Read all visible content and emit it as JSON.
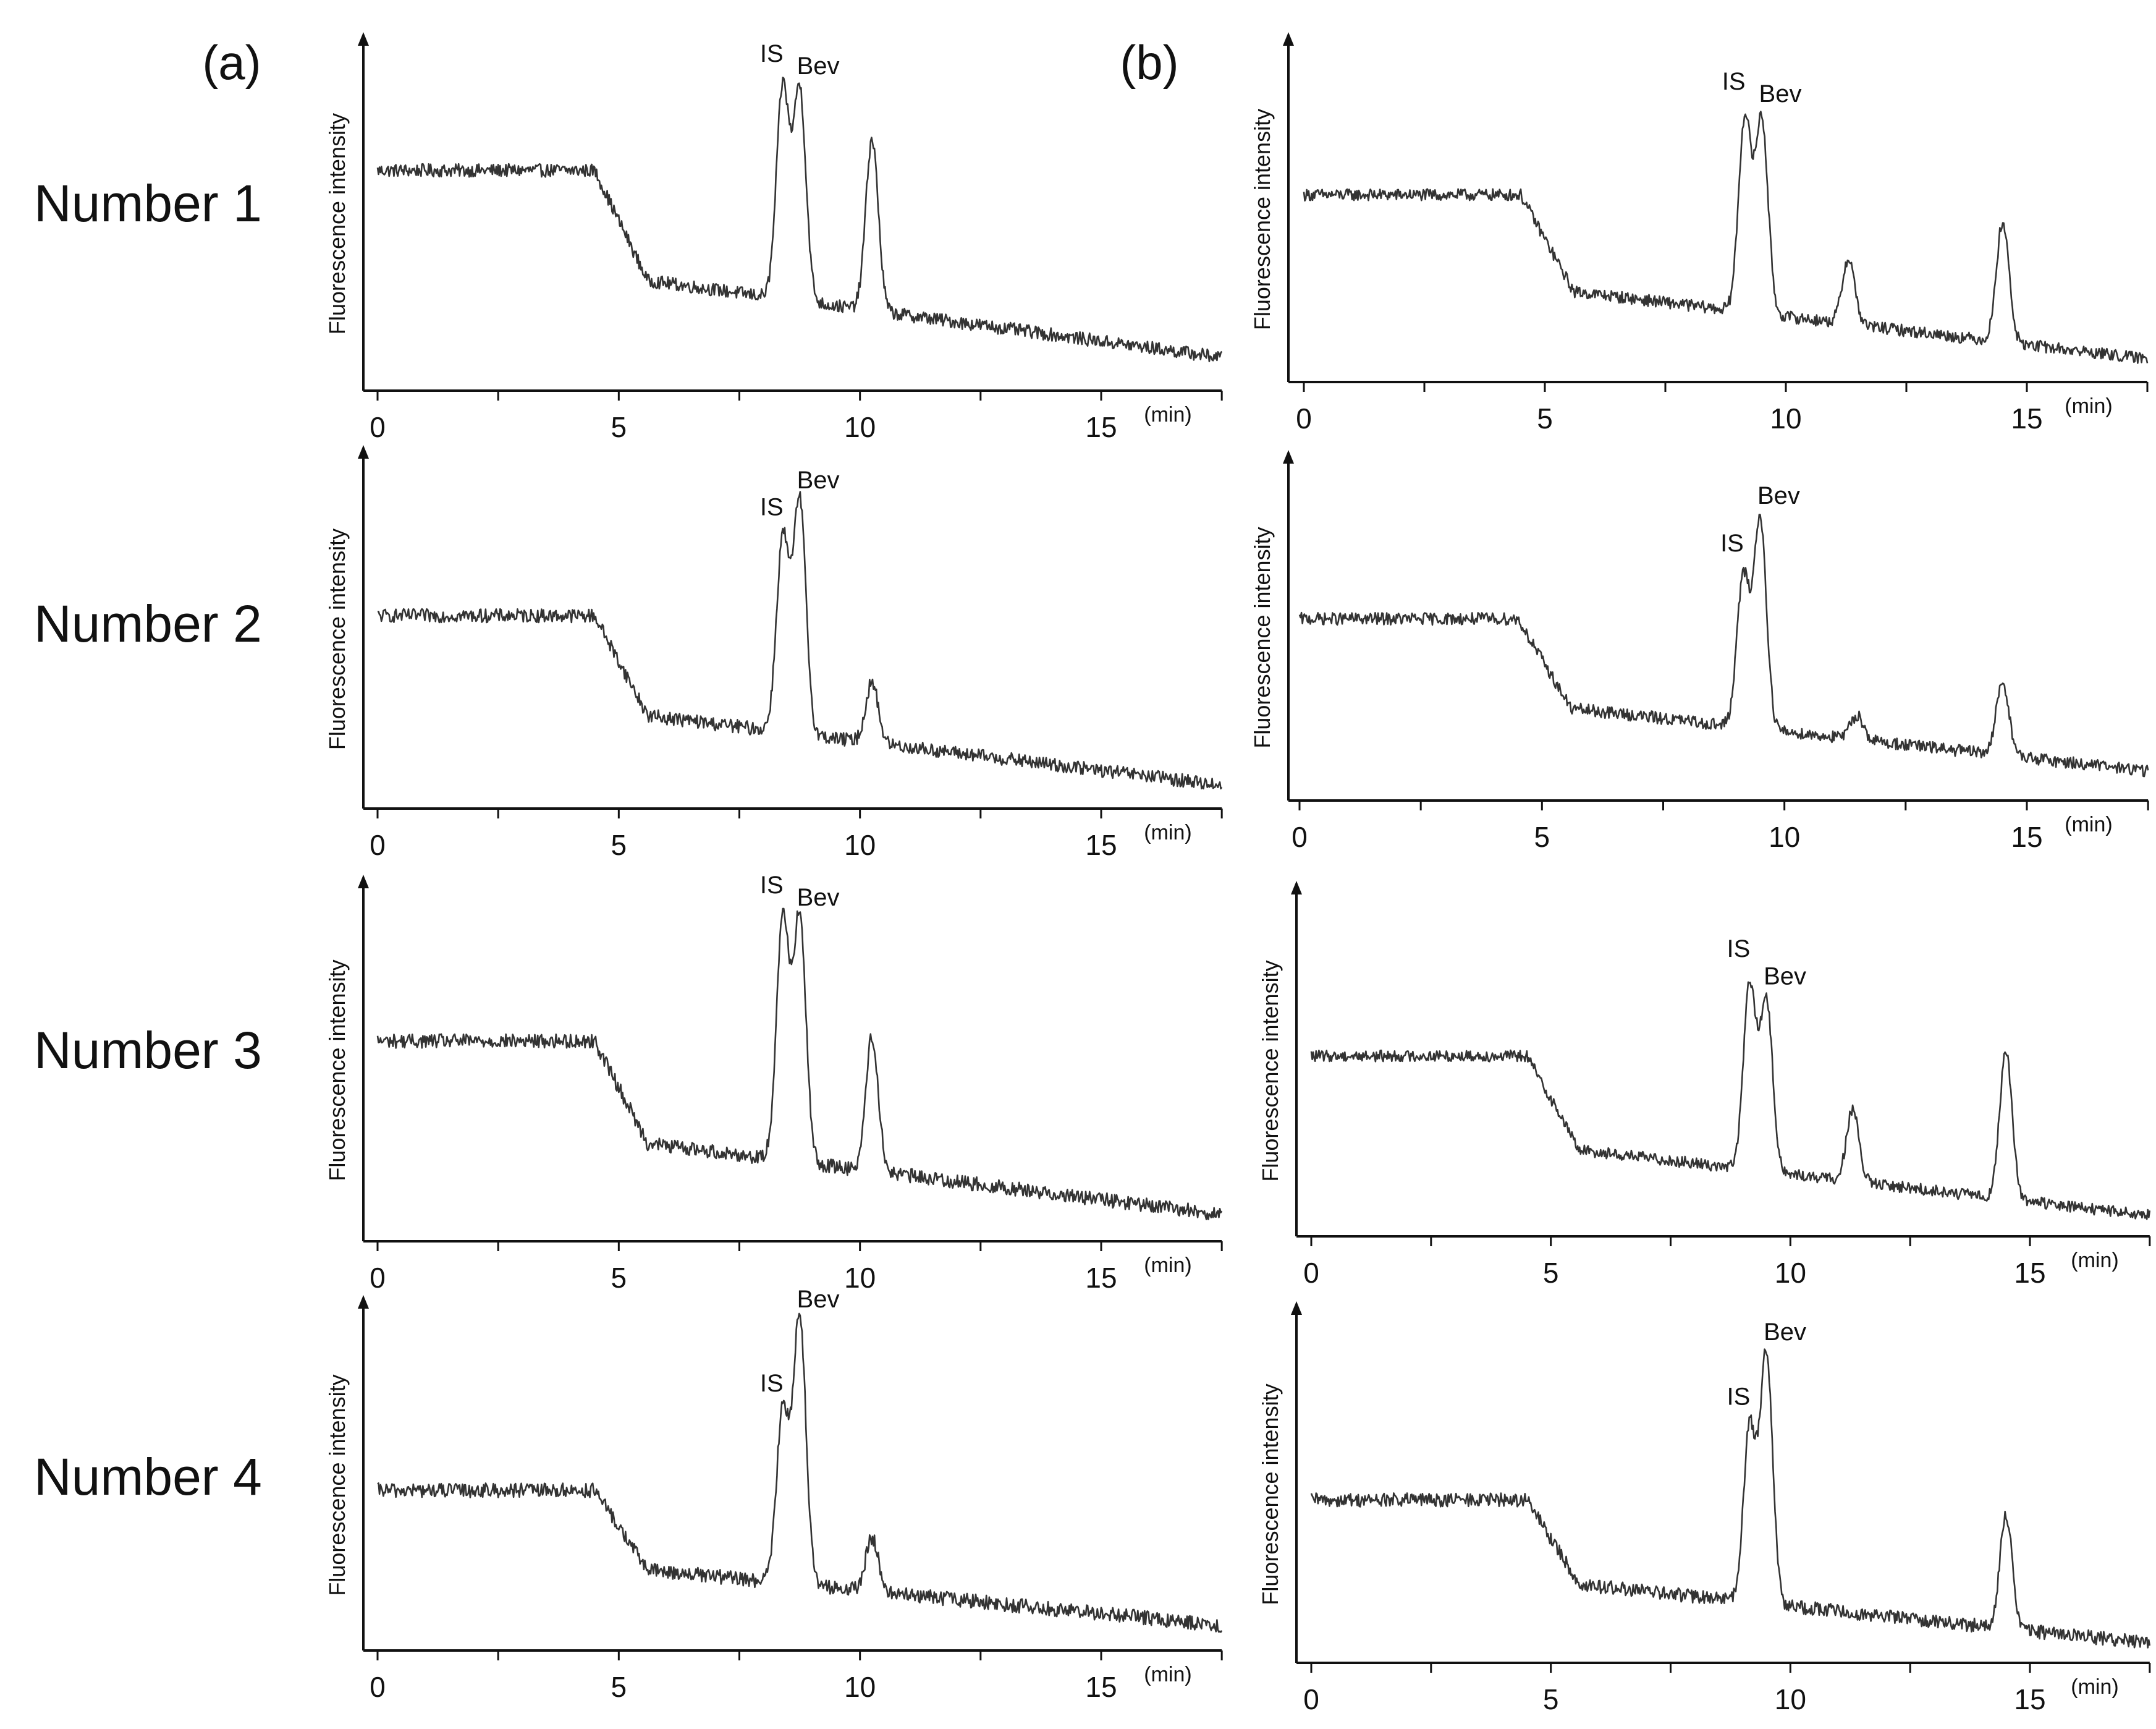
{
  "figure": {
    "column_labels": [
      "(a)",
      "(b)"
    ],
    "row_labels": [
      "Number 1",
      "Number 2",
      "Number 3",
      "Number 4"
    ],
    "x_unit": "(min)",
    "y_axis_label": "Fluorescence intensity",
    "peak_labels": {
      "is": "IS",
      "bev": "Bev"
    }
  },
  "chart_data": [
    {
      "type": "line",
      "panel": "(a)",
      "row": "Number 1",
      "xlabel": "(min)",
      "ylabel": "Fluorescence intensity",
      "xlim": [
        0,
        17.5
      ],
      "xticks": [
        0,
        5,
        10,
        15
      ],
      "ylim": [
        0,
        100
      ],
      "baseline_level": 69,
      "peaks": [
        {
          "x": 8.4,
          "height": 100,
          "label": "IS"
        },
        {
          "x": 8.75,
          "height": 100,
          "label": "Bev"
        },
        {
          "x": 10.25,
          "height": 86,
          "label": ""
        }
      ]
    },
    {
      "type": "line",
      "panel": "(b)",
      "row": "Number 1",
      "xlabel": "(min)",
      "ylabel": "Fluorescence intensity",
      "xlim": [
        0,
        17.5
      ],
      "xticks": [
        0,
        5,
        10,
        15
      ],
      "ylim": [
        0,
        100
      ],
      "baseline_level": 67,
      "peaks": [
        {
          "x": 9.15,
          "height": 100,
          "label": "IS"
        },
        {
          "x": 9.5,
          "height": 100,
          "label": "Bev"
        },
        {
          "x": 11.3,
          "height": 51,
          "label": ""
        },
        {
          "x": 14.5,
          "height": 72,
          "label": ""
        }
      ]
    },
    {
      "type": "line",
      "panel": "(a)",
      "row": "Number 2",
      "xlabel": "(min)",
      "ylabel": "Fluorescence intensity",
      "xlim": [
        0,
        17.5
      ],
      "xticks": [
        0,
        5,
        10,
        15
      ],
      "ylim": [
        0,
        100
      ],
      "baseline_level": 60,
      "peaks": [
        {
          "x": 8.4,
          "height": 87,
          "label": "IS"
        },
        {
          "x": 8.75,
          "height": 100,
          "label": "Bev"
        },
        {
          "x": 10.25,
          "height": 43,
          "label": ""
        }
      ]
    },
    {
      "type": "line",
      "panel": "(b)",
      "row": "Number 2",
      "xlabel": "(min)",
      "ylabel": "Fluorescence intensity",
      "xlim": [
        0,
        17.5
      ],
      "xticks": [
        0,
        5,
        10,
        15
      ],
      "ylim": [
        0,
        100
      ],
      "baseline_level": 60,
      "peaks": [
        {
          "x": 9.15,
          "height": 78,
          "label": "IS"
        },
        {
          "x": 9.5,
          "height": 100,
          "label": "Bev"
        },
        {
          "x": 11.5,
          "height": 32,
          "label": ""
        },
        {
          "x": 14.5,
          "height": 50,
          "label": ""
        }
      ]
    },
    {
      "type": "line",
      "panel": "(a)",
      "row": "Number 3",
      "xlabel": "(min)",
      "ylabel": "Fluorescence intensity",
      "xlim": [
        0,
        17.5
      ],
      "xticks": [
        0,
        5,
        10,
        15
      ],
      "ylim": [
        0,
        100
      ],
      "baseline_level": 59,
      "peaks": [
        {
          "x": 8.4,
          "height": 100,
          "label": "IS"
        },
        {
          "x": 8.75,
          "height": 100,
          "label": "Bev"
        },
        {
          "x": 10.25,
          "height": 65,
          "label": ""
        }
      ]
    },
    {
      "type": "line",
      "panel": "(b)",
      "row": "Number 3",
      "xlabel": "(min)",
      "ylabel": "Fluorescence intensity",
      "xlim": [
        0,
        17.5
      ],
      "xticks": [
        0,
        5,
        10,
        15
      ],
      "ylim": [
        0,
        100
      ],
      "baseline_level": 68,
      "peaks": [
        {
          "x": 9.15,
          "height": 100,
          "label": "IS"
        },
        {
          "x": 9.5,
          "height": 94,
          "label": "Bev"
        },
        {
          "x": 11.3,
          "height": 55,
          "label": ""
        },
        {
          "x": 14.5,
          "height": 85,
          "label": ""
        }
      ]
    },
    {
      "type": "line",
      "panel": "(a)",
      "row": "Number 4",
      "xlabel": "(min)",
      "ylabel": "Fluorescence intensity",
      "xlim": [
        0,
        17.5
      ],
      "xticks": [
        0,
        5,
        10,
        15
      ],
      "ylim": [
        0,
        100
      ],
      "baseline_level": 45,
      "peaks": [
        {
          "x": 8.4,
          "height": 70,
          "label": "IS"
        },
        {
          "x": 8.75,
          "height": 100,
          "label": "Bev"
        },
        {
          "x": 10.25,
          "height": 33,
          "label": ""
        }
      ]
    },
    {
      "type": "line",
      "panel": "(b)",
      "row": "Number 4",
      "xlabel": "(min)",
      "ylabel": "Fluorescence intensity",
      "xlim": [
        0,
        17.5
      ],
      "xticks": [
        0,
        5,
        10,
        15
      ],
      "ylim": [
        0,
        100
      ],
      "baseline_level": 50,
      "peaks": [
        {
          "x": 9.15,
          "height": 75,
          "label": "IS"
        },
        {
          "x": 9.5,
          "height": 100,
          "label": "Bev"
        },
        {
          "x": 14.5,
          "height": 55,
          "label": ""
        }
      ]
    }
  ]
}
